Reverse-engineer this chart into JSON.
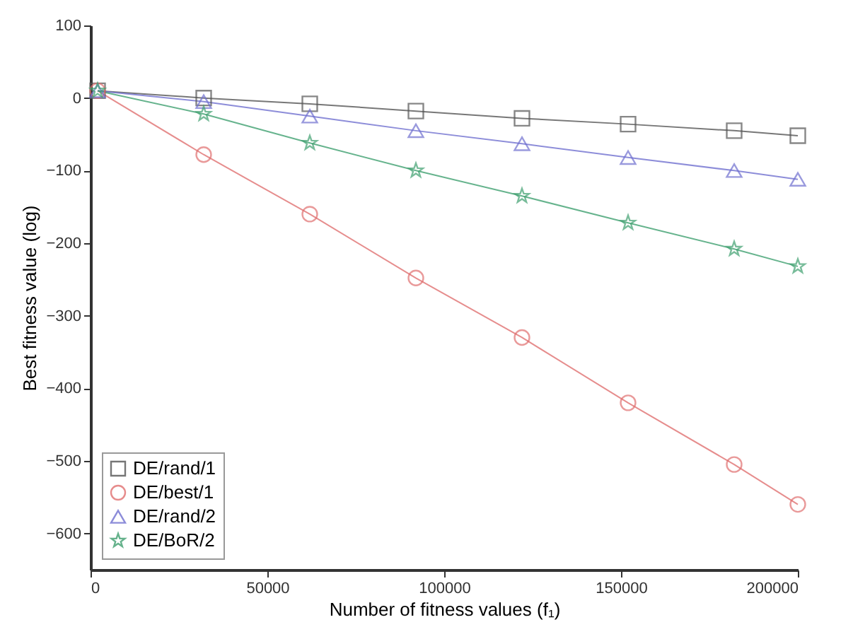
{
  "chart_data": {
    "type": "line",
    "xlabel": "Number of fitness values (f₁)",
    "ylabel": "Best fitness value (log)",
    "x": [
      2000,
      32000,
      62000,
      92000,
      122000,
      152000,
      182000,
      200000
    ],
    "series": [
      {
        "name": "DE/rand/1",
        "color": "#555555",
        "marker": "square",
        "values": [
          10,
          0,
          -8,
          -18,
          -28,
          -36,
          -45,
          -52
        ]
      },
      {
        "name": "DE/best/1",
        "color": "#e07070",
        "marker": "circle",
        "values": [
          10,
          -78,
          -160,
          -248,
          -330,
          -420,
          -505,
          -560
        ]
      },
      {
        "name": "DE/rand/2",
        "color": "#7070d0",
        "marker": "triangle",
        "values": [
          10,
          -5,
          -25,
          -45,
          -63,
          -82,
          -100,
          -112
        ]
      },
      {
        "name": "DE/BoR/2",
        "color": "#40a070",
        "marker": "star",
        "values": [
          10,
          -22,
          -62,
          -100,
          -135,
          -172,
          -208,
          -232
        ]
      }
    ],
    "xlim": [
      0,
      200000
    ],
    "xticks": [
      0,
      50000,
      100000,
      150000,
      200000
    ],
    "ylim": [
      -650,
      100
    ],
    "yticks": [
      -600,
      -500,
      -400,
      -300,
      -200,
      -100,
      0,
      100
    ],
    "legend": "bottom left",
    "grid": false
  }
}
